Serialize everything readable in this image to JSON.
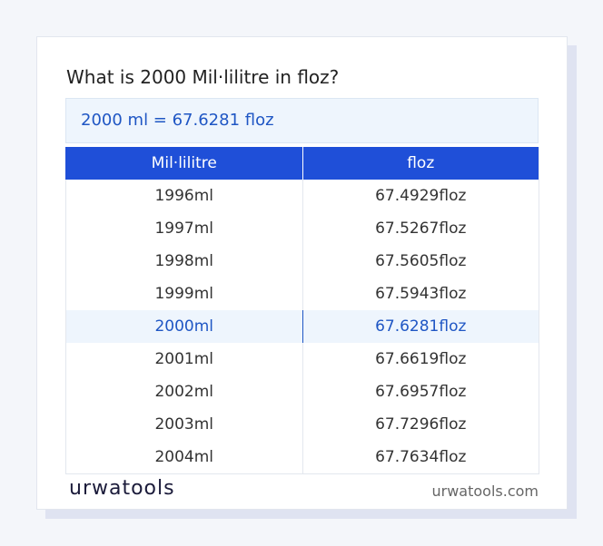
{
  "header": {
    "title": "What is 2000 Mil·lilitre in floz?"
  },
  "result": "2000 ml = 67.6281 floz",
  "table": {
    "columns": [
      "Mil·lilitre",
      "floz"
    ],
    "rows": [
      [
        "1996ml",
        "67.4929floz"
      ],
      [
        "1997ml",
        "67.5267floz"
      ],
      [
        "1998ml",
        "67.5605floz"
      ],
      [
        "1999ml",
        "67.5943floz"
      ],
      [
        "2000ml",
        "67.6281floz"
      ],
      [
        "2001ml",
        "67.6619floz"
      ],
      [
        "2002ml",
        "67.6957floz"
      ],
      [
        "2003ml",
        "67.7296floz"
      ],
      [
        "2004ml",
        "67.7634floz"
      ]
    ],
    "highlighted_row": 4
  },
  "footer": {
    "logo": "urwatools",
    "site": "urwatools.com"
  }
}
